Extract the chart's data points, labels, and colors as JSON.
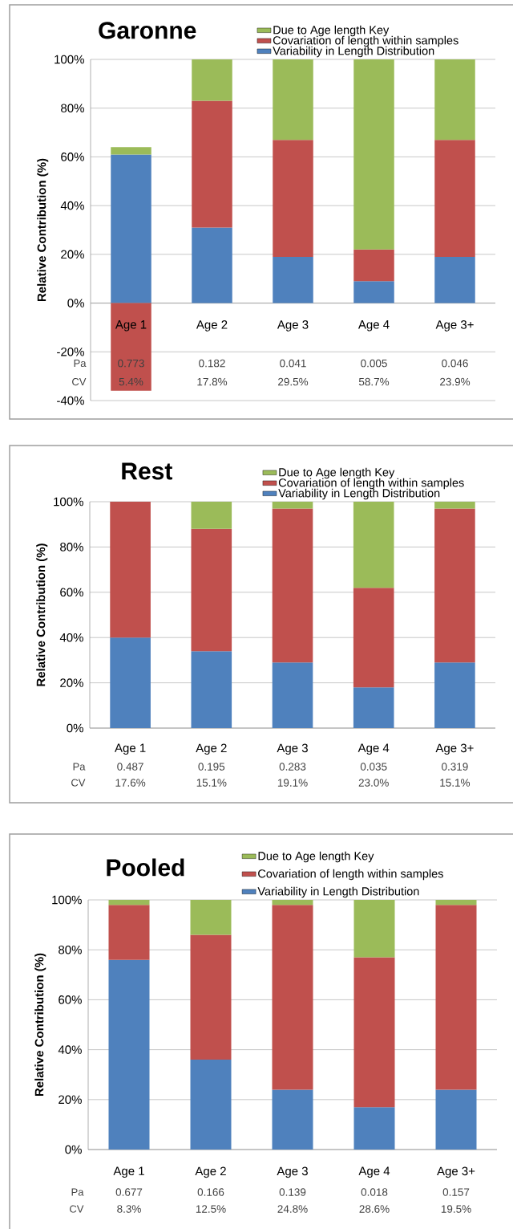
{
  "chart_data": [
    {
      "type": "bar",
      "title": "Garonne",
      "ylabel": "Relative Contribution (%)",
      "stacked": true,
      "grid": "y",
      "legend": "top right",
      "categories": [
        "Age 1",
        "Age 2",
        "Age 3",
        "Age 4",
        "Age 3+"
      ],
      "series": [
        {
          "name": "Variability in  Length Distribution",
          "color": "#4f81bd",
          "values": [
            61,
            31,
            19,
            9,
            19
          ]
        },
        {
          "name": "Covariation of length within samples",
          "color": "#c0504d",
          "values": [
            -36,
            52,
            48,
            13,
            48
          ]
        },
        {
          "name": "Due to Age length Key",
          "color": "#9bbb59",
          "values": [
            3,
            17,
            33,
            78,
            33
          ]
        }
      ],
      "ylim": [
        -40,
        100
      ],
      "yticks": [
        {
          "value": -40,
          "label": "-40%"
        },
        {
          "value": -20,
          "label": "-20%"
        },
        {
          "value": 0,
          "label": "0%"
        },
        {
          "value": 20,
          "label": "20%"
        },
        {
          "value": 40,
          "label": "40%"
        },
        {
          "value": 60,
          "label": "60%"
        },
        {
          "value": 80,
          "label": "80%"
        },
        {
          "value": 100,
          "label": "100%"
        }
      ],
      "annotations": [
        "Pa",
        "0.773",
        "0.182",
        "0.041",
        "0.005",
        "0.046",
        "CV",
        "5.4%",
        "17.8%",
        "29.5%",
        "58.7%",
        "23.9%"
      ]
    },
    {
      "type": "bar",
      "title": "Rest",
      "ylabel": "Relative Contribution (%)",
      "stacked": true,
      "grid": "y",
      "legend": "top right",
      "categories": [
        "Age 1",
        "Age 2",
        "Age 3",
        "Age 4",
        "Age 3+"
      ],
      "series": [
        {
          "name": "Variability in  Length Distribution",
          "color": "#4f81bd",
          "values": [
            40,
            34,
            29,
            18,
            29
          ]
        },
        {
          "name": "Covariation of length within samples",
          "color": "#c0504d",
          "values": [
            60,
            54,
            68,
            44,
            68
          ]
        },
        {
          "name": "Due to Age length Key",
          "color": "#9bbb59",
          "values": [
            0,
            12,
            3,
            38,
            3
          ]
        }
      ],
      "ylim": [
        0,
        100
      ],
      "yticks": [
        {
          "value": 0,
          "label": "0%"
        },
        {
          "value": 20,
          "label": "20%"
        },
        {
          "value": 40,
          "label": "40%"
        },
        {
          "value": 60,
          "label": "60%"
        },
        {
          "value": 80,
          "label": "80%"
        },
        {
          "value": 100,
          "label": "100%"
        }
      ],
      "annotations": [
        "Pa",
        "0.487",
        "0.195",
        "0.283",
        "0.035",
        "0.319",
        "CV",
        "17.6%",
        "15.1%",
        "19.1%",
        "23.0%",
        "15.1%"
      ]
    },
    {
      "type": "bar",
      "title": "Pooled",
      "ylabel": "Relative Contribution (%)",
      "stacked": true,
      "grid": "y",
      "legend": "top right",
      "categories": [
        "Age 1",
        "Age 2",
        "Age 3",
        "Age 4",
        "Age 3+"
      ],
      "series": [
        {
          "name": "Variability in  Length Distribution",
          "color": "#4f81bd",
          "values": [
            76,
            36,
            24,
            17,
            24
          ]
        },
        {
          "name": "Covariation of length within samples",
          "color": "#c0504d",
          "values": [
            22,
            50,
            74,
            60,
            74
          ]
        },
        {
          "name": "Due to Age length Key",
          "color": "#9bbb59",
          "values": [
            2,
            14,
            2,
            23,
            2
          ]
        }
      ],
      "ylim": [
        0,
        100
      ],
      "yticks": [
        {
          "value": 0,
          "label": "0%"
        },
        {
          "value": 20,
          "label": "20%"
        },
        {
          "value": 40,
          "label": "40%"
        },
        {
          "value": 60,
          "label": "60%"
        },
        {
          "value": 80,
          "label": "80%"
        },
        {
          "value": 100,
          "label": "100%"
        }
      ],
      "annotations": [
        "Pa",
        "0.677",
        "0.166",
        "0.139",
        "0.018",
        "0.157",
        "CV",
        "8.3%",
        "12.5%",
        "24.8%",
        "28.6%",
        "19.5%"
      ]
    }
  ]
}
